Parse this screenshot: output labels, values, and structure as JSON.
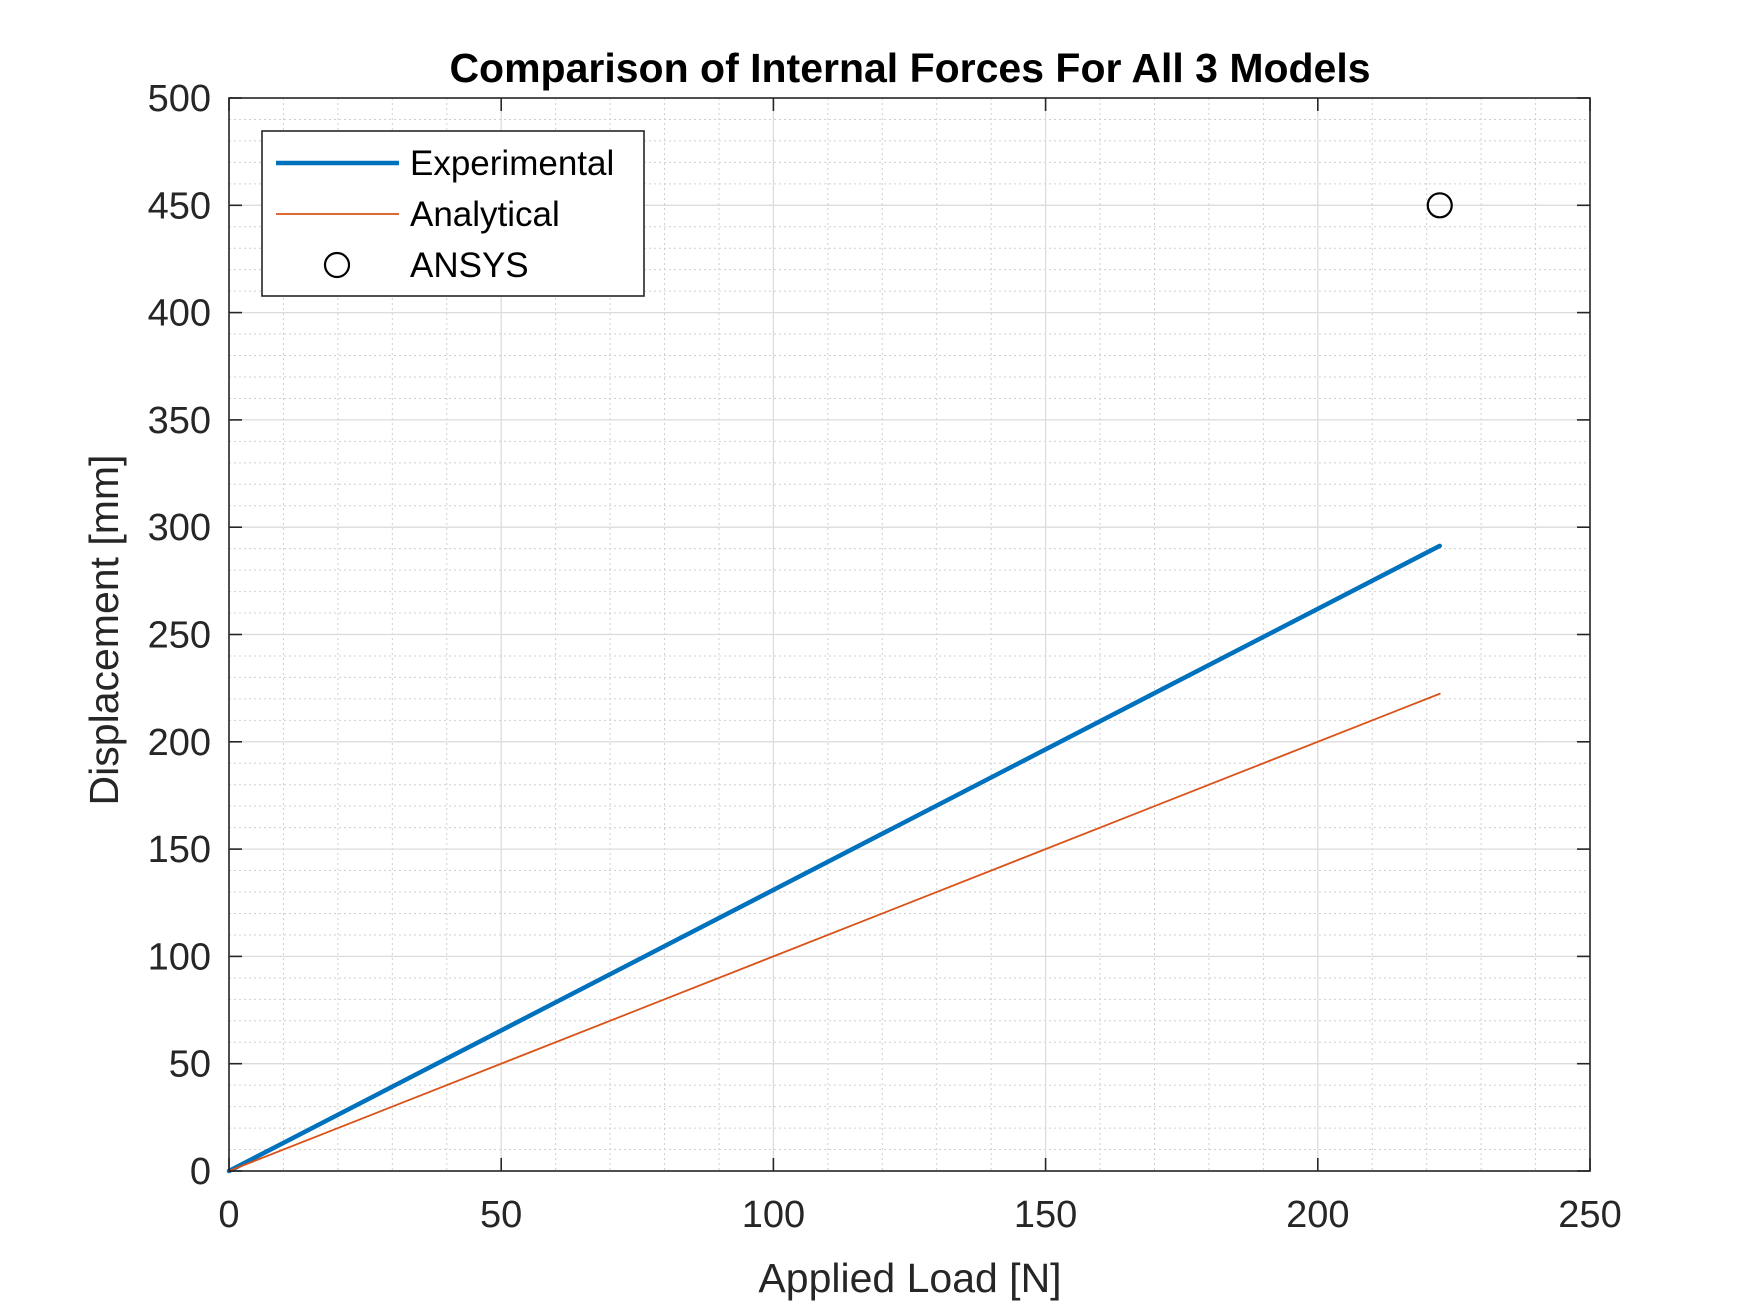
{
  "chart_data": {
    "type": "line",
    "title": "Comparison of Internal Forces For All 3 Models",
    "xlabel": "Applied Load [N]",
    "ylabel": "Displacement [mm]",
    "xlim": [
      0,
      250
    ],
    "ylim": [
      0,
      500
    ],
    "xticks": [
      0,
      50,
      100,
      150,
      200,
      250
    ],
    "yticks": [
      0,
      50,
      100,
      150,
      200,
      250,
      300,
      350,
      400,
      450,
      500
    ],
    "grid": true,
    "minor_grid": true,
    "legend_position": "top-left",
    "series": [
      {
        "name": "Experimental",
        "style": "line",
        "color": "#0072BD",
        "x": [
          0,
          222.4
        ],
        "y": [
          0,
          291.3
        ]
      },
      {
        "name": "Analytical",
        "style": "line",
        "color": "#D95319",
        "x": [
          0,
          222.4
        ],
        "y": [
          0,
          222.4
        ]
      },
      {
        "name": "ANSYS",
        "style": "marker-circle",
        "color": "#000000",
        "x": [
          222.4
        ],
        "y": [
          450
        ]
      }
    ]
  }
}
